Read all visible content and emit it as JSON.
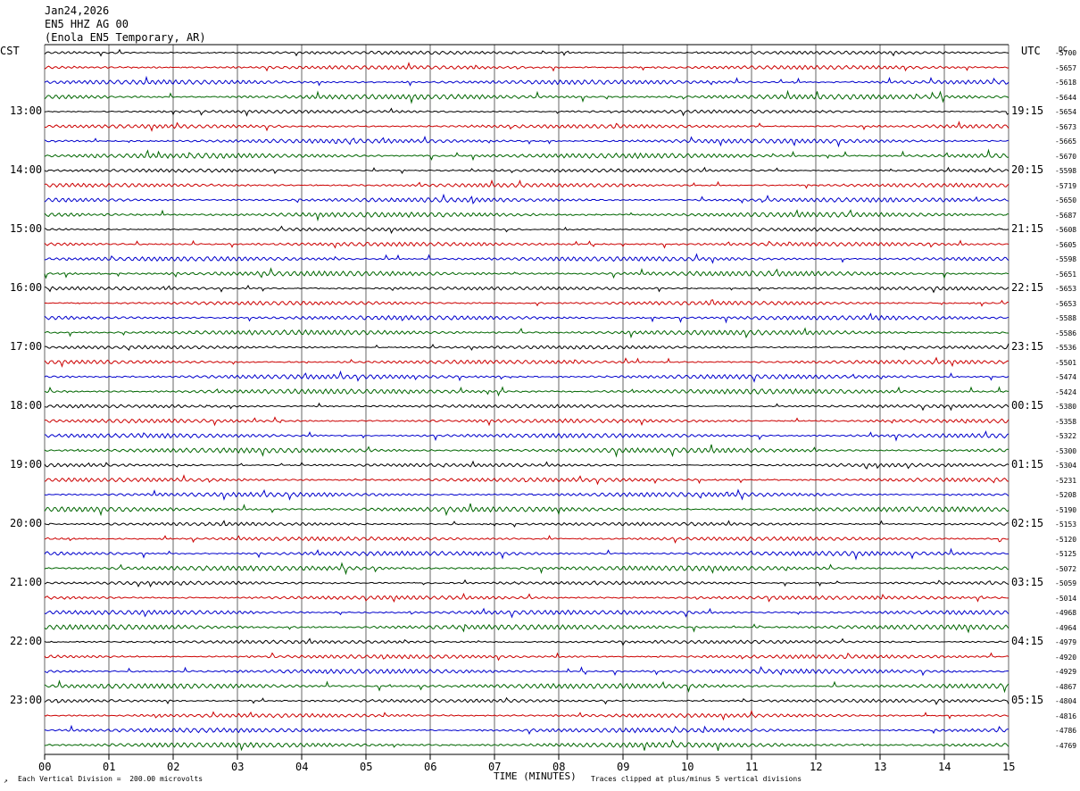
{
  "header": {
    "date": "Jan24,2026",
    "station": "EN5 HHZ AG 00",
    "location": "(Enola EN5 Temporary, AR)"
  },
  "left_tz": "CST",
  "right_tz": "UTC",
  "dc_label": "DC",
  "footer": {
    "scale_note": "Each Vertical Division =  200.00 microvolts",
    "x_label": "TIME (MINUTES)",
    "clip_note": "Traces clipped at plus/minus 5 vertical divisions"
  },
  "colors": {
    "trace_cycle": [
      "#000000",
      "#cc0000",
      "#0000cc",
      "#006600"
    ],
    "grid": "#000000"
  },
  "chart_data": {
    "type": "line",
    "title": "",
    "xlabel": "TIME (MINUTES)",
    "ylabel": "",
    "xlim": [
      0,
      15
    ],
    "x_ticks": [
      "00",
      "01",
      "02",
      "03",
      "04",
      "05",
      "06",
      "07",
      "08",
      "09",
      "10",
      "11",
      "12",
      "13",
      "14",
      "15"
    ],
    "grid": true,
    "trace_count": 48,
    "minutes_per_trace": 15,
    "left_hour_labels": [
      "13:00",
      "14:00",
      "15:00",
      "16:00",
      "17:00",
      "18:00",
      "19:00",
      "20:00",
      "21:00",
      "22:00",
      "23:00"
    ],
    "right_hour_labels": [
      "19:15",
      "20:15",
      "21:15",
      "22:15",
      "23:15",
      "00:15",
      "01:15",
      "02:15",
      "03:15",
      "04:15",
      "05:15"
    ],
    "dc_offsets": [
      "-5700",
      "-5657",
      "-5618",
      "-5644",
      "-5654",
      "-5673",
      "-5665",
      "-5670",
      "-5598",
      "-5719",
      "-5650",
      "-5687",
      "-5608",
      "-5605",
      "-5598",
      "-5651",
      "-5653",
      "-5653",
      "-5588",
      "-5586",
      "-5536",
      "-5501",
      "-5474",
      "-5424",
      "-5380",
      "-5358",
      "-5322",
      "-5300",
      "-5304",
      "-5231",
      "-5208",
      "-5190",
      "-5153",
      "-5120",
      "-5125",
      "-5072",
      "-5059",
      "-5014",
      "-4968",
      "-4964",
      "-4979",
      "-4920",
      "-4929",
      "-4867",
      "-4804",
      "-4816",
      "-4786",
      "-4769"
    ]
  }
}
